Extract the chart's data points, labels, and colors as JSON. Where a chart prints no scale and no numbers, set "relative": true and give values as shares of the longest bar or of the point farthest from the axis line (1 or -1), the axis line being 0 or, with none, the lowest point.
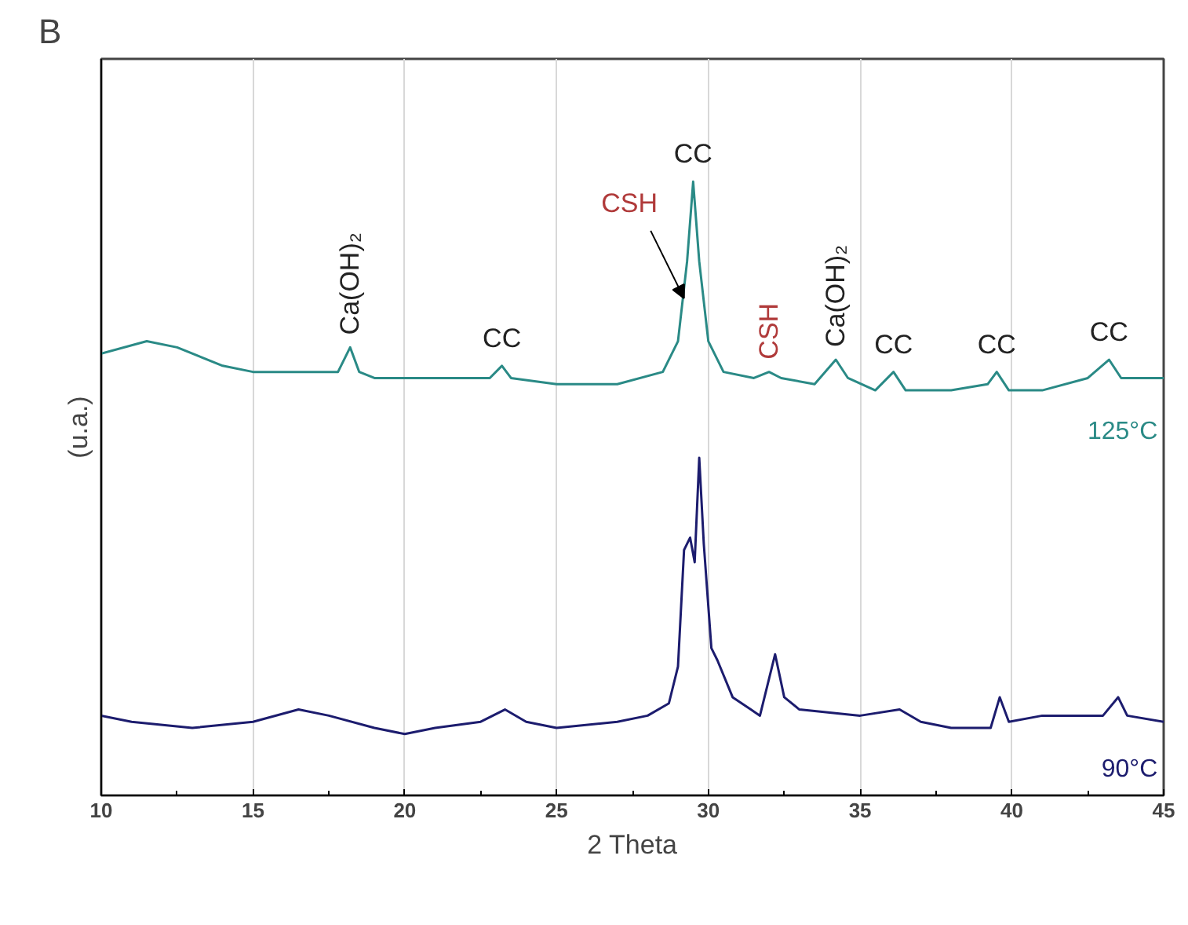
{
  "chart_data": {
    "type": "line",
    "title": "B",
    "xlabel": "2 Theta",
    "ylabel": "(u.a.)",
    "relative": true,
    "xlim": [
      10,
      45
    ],
    "xticks": [
      10,
      15,
      20,
      25,
      30,
      35,
      40,
      45
    ],
    "grid": "x",
    "series": [
      {
        "name": "125°C",
        "color": "#2a8a86",
        "x": [
          10,
          11.5,
          12.5,
          14,
          15,
          17,
          17.8,
          18.2,
          18.5,
          19,
          22,
          22.8,
          23.2,
          23.5,
          25,
          27,
          28.5,
          29,
          29.3,
          29.5,
          29.7,
          30,
          30.5,
          31.5,
          32,
          32.4,
          33.5,
          34.2,
          34.6,
          35.5,
          36.1,
          36.5,
          38,
          39.2,
          39.5,
          39.9,
          41,
          42.5,
          43.2,
          43.6,
          45
        ],
        "values": [
          0.72,
          0.74,
          0.73,
          0.7,
          0.69,
          0.69,
          0.69,
          0.73,
          0.69,
          0.68,
          0.68,
          0.68,
          0.7,
          0.68,
          0.67,
          0.67,
          0.69,
          0.74,
          0.87,
          1.0,
          0.87,
          0.74,
          0.69,
          0.68,
          0.69,
          0.68,
          0.67,
          0.71,
          0.68,
          0.66,
          0.69,
          0.66,
          0.66,
          0.67,
          0.69,
          0.66,
          0.66,
          0.68,
          0.71,
          0.68,
          0.68
        ]
      },
      {
        "name": "90°C",
        "color": "#1c1c6e",
        "x": [
          10,
          11,
          13,
          15,
          16.5,
          17.5,
          19,
          20,
          21,
          22.5,
          23.3,
          24,
          25,
          27,
          28,
          28.7,
          29,
          29.2,
          29.4,
          29.55,
          29.7,
          29.85,
          30.1,
          30.3,
          30.8,
          31.4,
          31.7,
          32.0,
          32.2,
          32.5,
          33,
          35,
          36.3,
          37,
          38,
          39.3,
          39.6,
          39.9,
          41,
          43,
          43.5,
          43.8,
          45
        ],
        "values": [
          0.13,
          0.12,
          0.11,
          0.12,
          0.14,
          0.13,
          0.11,
          0.1,
          0.11,
          0.12,
          0.14,
          0.12,
          0.11,
          0.12,
          0.13,
          0.15,
          0.21,
          0.4,
          0.42,
          0.38,
          0.55,
          0.41,
          0.24,
          0.22,
          0.16,
          0.14,
          0.13,
          0.19,
          0.23,
          0.16,
          0.14,
          0.13,
          0.14,
          0.12,
          0.11,
          0.11,
          0.16,
          0.12,
          0.13,
          0.13,
          0.16,
          0.13,
          0.12
        ]
      }
    ],
    "annotations": [
      {
        "text": "Ca(OH)₂",
        "x": 18.2,
        "y": 0.73
      },
      {
        "text": "CC",
        "x": 23.2,
        "y": 0.7
      },
      {
        "text": "CSH",
        "x": 29.3,
        "y": 0.87
      },
      {
        "text": "CC",
        "x": 29.5,
        "y": 1.0
      },
      {
        "text": "CSH",
        "x": 32,
        "y": 0.69
      },
      {
        "text": "Ca(OH)₂",
        "x": 34.2,
        "y": 0.71
      },
      {
        "text": "CC",
        "x": 36.1,
        "y": 0.69
      },
      {
        "text": "CC",
        "x": 39.5,
        "y": 0.69
      },
      {
        "text": "CC",
        "x": 43.2,
        "y": 0.71
      }
    ]
  }
}
